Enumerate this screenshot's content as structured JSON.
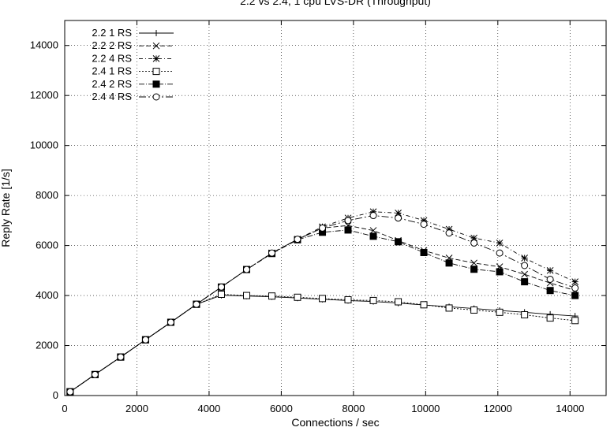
{
  "chart_data": {
    "type": "line",
    "title": "2.2 vs 2.4, 1 cpu LVS-DR (Throughput)",
    "xlabel": "Connections / sec",
    "ylabel": "Reply Rate [1/s]",
    "xlim": [
      0,
      15000
    ],
    "ylim": [
      0,
      15000
    ],
    "x_ticks": [
      0,
      2000,
      4000,
      6000,
      8000,
      10000,
      12000,
      14000
    ],
    "y_ticks": [
      0,
      2000,
      4000,
      6000,
      8000,
      10000,
      12000,
      14000
    ],
    "grid": true,
    "legend_position": "top-left",
    "series": [
      {
        "name": "2.2 1 RS",
        "marker": "plus",
        "dash": "solid",
        "x": [
          150,
          840,
          1550,
          2240,
          2940,
          3650,
          4340,
          5040,
          5740,
          6450,
          7140,
          7850,
          8550,
          9240,
          9950,
          10650,
          11340,
          12050,
          12740,
          13450,
          14140
        ],
        "y": [
          150,
          840,
          1540,
          2230,
          2930,
          3650,
          4010,
          3980,
          3950,
          3900,
          3850,
          3800,
          3760,
          3700,
          3620,
          3550,
          3480,
          3400,
          3330,
          3250,
          3180
        ]
      },
      {
        "name": "2.2 2 RS",
        "marker": "x",
        "dash": "dash",
        "x": [
          150,
          840,
          1550,
          2240,
          2940,
          3650,
          4340,
          5040,
          5740,
          6450,
          7140,
          7850,
          8550,
          9240,
          9950,
          10650,
          11340,
          12050,
          12740,
          13450,
          14140
        ],
        "y": [
          150,
          840,
          1540,
          2230,
          2930,
          3650,
          4340,
          5040,
          5700,
          6250,
          6700,
          6800,
          6600,
          6200,
          5800,
          5500,
          5300,
          5150,
          4850,
          4500,
          4200
        ]
      },
      {
        "name": "2.2 4 RS",
        "marker": "star",
        "dash": "dashdot",
        "x": [
          150,
          840,
          1550,
          2240,
          2940,
          3650,
          4340,
          5040,
          5740,
          6450,
          7140,
          7850,
          8550,
          9240,
          9950,
          10650,
          11340,
          12050,
          12740,
          13450,
          14140
        ],
        "y": [
          150,
          840,
          1540,
          2230,
          2930,
          3650,
          4340,
          5040,
          5700,
          6250,
          6750,
          7100,
          7350,
          7300,
          7000,
          6650,
          6300,
          6100,
          5500,
          5000,
          4550
        ]
      },
      {
        "name": "2.4 1 RS",
        "marker": "square-open",
        "dash": "dot",
        "x": [
          150,
          840,
          1550,
          2240,
          2940,
          3650,
          4340,
          5040,
          5740,
          6450,
          7140,
          7850,
          8550,
          9240,
          9950,
          10650,
          11340,
          12050,
          12740,
          13450,
          14140
        ],
        "y": [
          150,
          840,
          1540,
          2230,
          2930,
          3650,
          4050,
          4000,
          3980,
          3930,
          3880,
          3830,
          3800,
          3750,
          3630,
          3500,
          3420,
          3330,
          3230,
          3100,
          3000
        ]
      },
      {
        "name": "2.4 2 RS",
        "marker": "square-filled",
        "dash": "dashdot2",
        "x": [
          150,
          840,
          1550,
          2240,
          2940,
          3650,
          4340,
          5040,
          5740,
          6450,
          7140,
          7850,
          8550,
          9240,
          9950,
          10650,
          11340,
          12050,
          12740,
          13450,
          14140
        ],
        "y": [
          150,
          840,
          1540,
          2230,
          2930,
          3650,
          4340,
          5040,
          5680,
          6230,
          6530,
          6620,
          6370,
          6150,
          5720,
          5300,
          5050,
          4950,
          4550,
          4200,
          4000
        ]
      },
      {
        "name": "2.4 4 RS",
        "marker": "circle-open",
        "dash": "longdashdot",
        "x": [
          150,
          840,
          1550,
          2240,
          2940,
          3650,
          4340,
          5040,
          5740,
          6450,
          7140,
          7850,
          8550,
          9240,
          9950,
          10650,
          11340,
          12050,
          12740,
          13450,
          14140
        ],
        "y": [
          150,
          840,
          1540,
          2230,
          2930,
          3650,
          4340,
          5040,
          5700,
          6250,
          6700,
          7000,
          7200,
          7100,
          6850,
          6500,
          6100,
          5700,
          5200,
          4650,
          4300
        ]
      }
    ]
  }
}
